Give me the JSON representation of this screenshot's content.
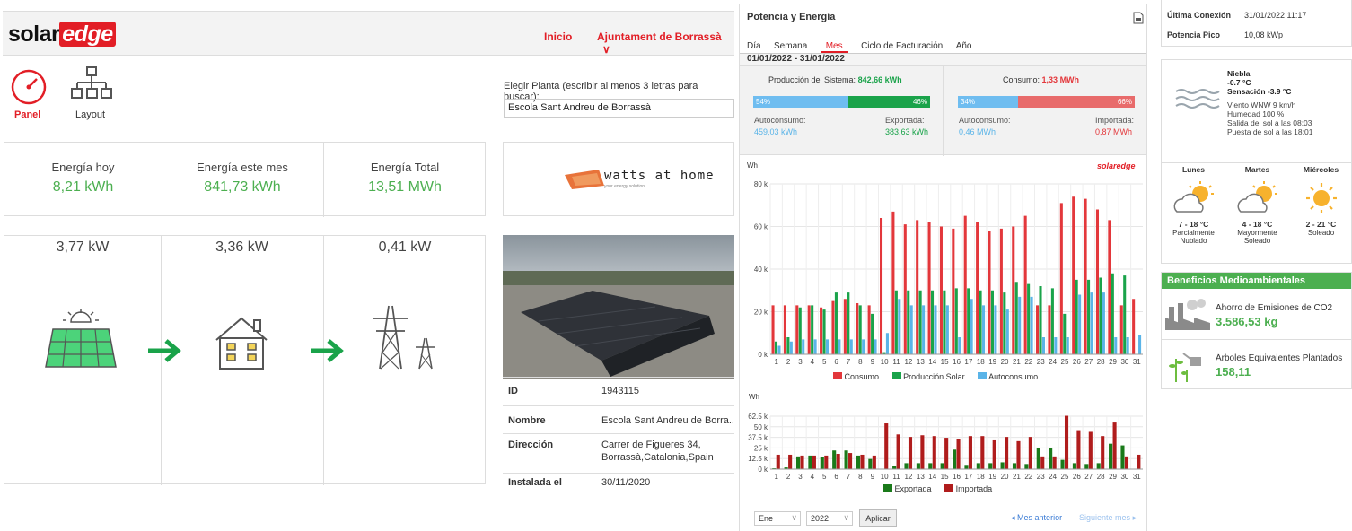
{
  "header": {
    "logo_a": "solar",
    "logo_b": "edge",
    "nav_home": "Inicio",
    "nav_account": "Ajuntament de Borrassà"
  },
  "nav": {
    "panel": "Panel",
    "layout": "Layout"
  },
  "plant_select": {
    "label": "Elegir Planta (escribir al menos 3 letras para buscar):",
    "value": "Escola Sant Andreu de Borrassà"
  },
  "energy": [
    {
      "label": "Energía hoy",
      "value": "8,21 kWh"
    },
    {
      "label": "Energía este mes",
      "value": "841,73 kWh"
    },
    {
      "label": "Energía Total",
      "value": "13,51 MWh"
    }
  ],
  "power": [
    {
      "value": "3,77 kW"
    },
    {
      "value": "3,36 kW"
    },
    {
      "value": "0,41 kW"
    }
  ],
  "partner_logo": {
    "text": "watts at home",
    "tagline": "your energy solution"
  },
  "site_info": [
    {
      "key": "ID",
      "value": "1943115"
    },
    {
      "key": "Nombre",
      "value": "Escola Sant Andreu de Borra..."
    },
    {
      "key": "Dirección",
      "value": "Carrer de Figueres 34,",
      "value2": "Borrassà,Catalonia,Spain"
    },
    {
      "key": "Instalada el",
      "value": "30/11/2020"
    }
  ],
  "power_energy": {
    "title": "Potencia y Energía",
    "tabs": [
      "Día",
      "Semana",
      "Mes",
      "Ciclo de Facturación",
      "Año"
    ],
    "active_tab": "Mes",
    "range": "01/01/2022 - 31/01/2022",
    "production": {
      "label": "Producción del Sistema:",
      "value": "842,66 kWh",
      "pct_self": "54%",
      "pct_export": "46%",
      "self_label": "Autoconsumo:",
      "self_value": "459,03 kWh",
      "export_label": "Exportada:",
      "export_value": "383,63 kWh"
    },
    "consumption": {
      "label": "Consumo:",
      "value": "1,33 MWh",
      "pct_self": "34%",
      "pct_import": "66%",
      "self_label": "Autoconsumo:",
      "self_value": "0,46 MWh",
      "import_label": "Importada:",
      "import_value": "0,87 MWh"
    },
    "watermark": "solaredge",
    "colors": {
      "consumo": "#e3373b",
      "produccion": "#1aa34a",
      "autoconsumo": "#5ab4e8",
      "exportada": "#1a7a1a",
      "importada": "#b01c1c"
    },
    "controls": {
      "month": "Ene",
      "year": "2022",
      "apply": "Aplicar",
      "prev": "Mes anterior",
      "next": "Siguiente mes"
    }
  },
  "chart_data": [
    {
      "type": "bar",
      "ylabel": "Wh",
      "ylim": [
        0,
        80000
      ],
      "yticks": [
        "0 k",
        "20 k",
        "40 k",
        "60 k",
        "80 k"
      ],
      "categories": [
        "1",
        "2",
        "3",
        "4",
        "5",
        "6",
        "7",
        "8",
        "9",
        "10",
        "11",
        "12",
        "13",
        "14",
        "15",
        "16",
        "17",
        "18",
        "19",
        "20",
        "21",
        "22",
        "23",
        "24",
        "25",
        "26",
        "27",
        "28",
        "29",
        "30",
        "31"
      ],
      "series": [
        {
          "name": "Consumo",
          "values": [
            23000,
            23000,
            23000,
            23000,
            22000,
            25000,
            26000,
            24000,
            23000,
            64000,
            67000,
            61000,
            63000,
            62000,
            60000,
            59000,
            65000,
            62000,
            58000,
            59000,
            60000,
            65000,
            23000,
            23000,
            71000,
            74000,
            73000,
            68000,
            63000,
            23000,
            26000
          ]
        },
        {
          "name": "Producción Solar",
          "values": [
            6000,
            8000,
            22000,
            23000,
            21000,
            29000,
            29000,
            23000,
            19000,
            1000,
            30000,
            30000,
            30000,
            30000,
            30000,
            31000,
            31000,
            30000,
            30000,
            29000,
            34000,
            33000,
            32000,
            31000,
            19000,
            35000,
            35000,
            36000,
            38000,
            37000,
            0
          ]
        },
        {
          "name": "Autoconsumo",
          "values": [
            4000,
            6000,
            7000,
            7000,
            7000,
            7000,
            7000,
            7000,
            7000,
            10000,
            26000,
            23000,
            23000,
            23000,
            23000,
            8000,
            26000,
            23000,
            23000,
            21000,
            27000,
            27000,
            8000,
            8000,
            8000,
            28000,
            29000,
            29000,
            8000,
            8000,
            9000
          ]
        }
      ]
    },
    {
      "type": "bar",
      "ylabel": "Wh",
      "ylim": [
        0,
        62500
      ],
      "yticks": [
        "0 k",
        "12.5 k",
        "25 k",
        "37.5 k",
        "50 k",
        "62.5 k"
      ],
      "categories": [
        "1",
        "2",
        "3",
        "4",
        "5",
        "6",
        "7",
        "8",
        "9",
        "10",
        "11",
        "12",
        "13",
        "14",
        "15",
        "16",
        "17",
        "18",
        "19",
        "20",
        "21",
        "22",
        "23",
        "24",
        "25",
        "26",
        "27",
        "28",
        "29",
        "30",
        "31"
      ],
      "series": [
        {
          "name": "Exportada",
          "values": [
            1000,
            2000,
            15000,
            16000,
            14000,
            22000,
            22000,
            16000,
            12000,
            0,
            4000,
            7000,
            7000,
            7000,
            7000,
            23000,
            5000,
            7000,
            7000,
            8000,
            7000,
            6000,
            25000,
            25000,
            11000,
            7000,
            6000,
            7000,
            30000,
            28000,
            0
          ]
        },
        {
          "name": "Importada",
          "values": [
            17000,
            17000,
            16000,
            16000,
            16000,
            18000,
            19000,
            17000,
            16000,
            54000,
            41000,
            38000,
            40000,
            39000,
            37000,
            36000,
            39000,
            39000,
            35000,
            38000,
            33000,
            38000,
            15000,
            15000,
            63000,
            46000,
            44000,
            39000,
            55000,
            15000,
            17000
          ]
        }
      ]
    }
  ],
  "right": {
    "last_conn_label": "Última Conexión",
    "last_conn_value": "31/01/2022 11:17",
    "peak_label": "Potencia Pico",
    "peak_value": "10,08 kWp",
    "weather": {
      "cond": "Niebla",
      "temp": "-0.7 °C",
      "feels": "Sensación -3.9 °C",
      "wind": "Viento WNW 9 km/h",
      "humidity": "Humedad 100 %",
      "sunrise": "Salida del sol a las 08:03",
      "sunset": "Puesta de sol a las 18:01"
    },
    "forecast": [
      {
        "day": "Lunes",
        "temp": "7 - 18 °C",
        "desc": "Parcialmente",
        "desc2": "Nublado"
      },
      {
        "day": "Martes",
        "temp": "4 - 18 °C",
        "desc": "Mayormente",
        "desc2": "Soleado"
      },
      {
        "day": "Miércoles",
        "temp": "2 - 21 °C",
        "desc": "Soleado",
        "desc2": ""
      }
    ],
    "benefits": {
      "title": "Beneficios Medioambientales",
      "co2_label": "Ahorro de Emisiones de CO2",
      "co2_value": "3.586,53 kg",
      "trees_label": "Árboles Equivalentes Plantados",
      "trees_value": "158,11"
    }
  }
}
